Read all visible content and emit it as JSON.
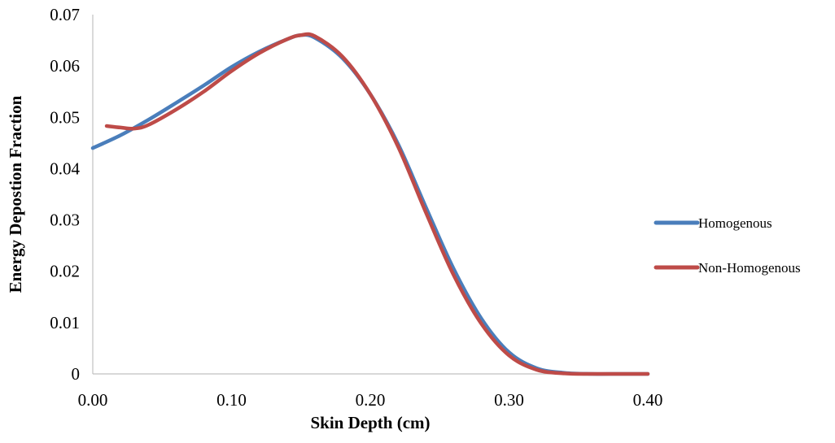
{
  "chart_data": {
    "type": "line",
    "title": "",
    "xlabel": "Skin Depth (cm)",
    "ylabel": "Energy Depostion Fraction",
    "xlim": [
      0,
      0.4
    ],
    "ylim": [
      0,
      0.07
    ],
    "xticks": [
      0.0,
      0.1,
      0.2,
      0.3,
      0.4
    ],
    "xtick_labels": [
      "0.00",
      "0.10",
      "0.20",
      "0.30",
      "0.40"
    ],
    "yticks": [
      0,
      0.01,
      0.02,
      0.03,
      0.04,
      0.05,
      0.06,
      0.07
    ],
    "ytick_labels": [
      "0",
      "0.01",
      "0.02",
      "0.03",
      "0.04",
      "0.05",
      "0.06",
      "0.07"
    ],
    "grid": false,
    "legend_position": "right",
    "series": [
      {
        "name": "Homogenous",
        "color": "#4a7ebb",
        "x": [
          0.0,
          0.02,
          0.04,
          0.06,
          0.08,
          0.1,
          0.12,
          0.14,
          0.15,
          0.16,
          0.18,
          0.2,
          0.22,
          0.24,
          0.26,
          0.28,
          0.3,
          0.32,
          0.34,
          0.36,
          0.38,
          0.4
        ],
        "y": [
          0.044,
          0.0465,
          0.0495,
          0.0528,
          0.0562,
          0.0598,
          0.0628,
          0.0652,
          0.066,
          0.0655,
          0.0615,
          0.0545,
          0.0448,
          0.0325,
          0.0205,
          0.0108,
          0.0042,
          0.0011,
          0.0002,
          0.0,
          0.0,
          0.0
        ]
      },
      {
        "name": "Non-Homogenous",
        "color": "#be4b48",
        "x": [
          0.01,
          0.02,
          0.03,
          0.04,
          0.06,
          0.08,
          0.1,
          0.12,
          0.14,
          0.15,
          0.16,
          0.18,
          0.2,
          0.22,
          0.24,
          0.26,
          0.28,
          0.3,
          0.32,
          0.34,
          0.36,
          0.38,
          0.4
        ],
        "y": [
          0.0483,
          0.048,
          0.0478,
          0.0485,
          0.0515,
          0.055,
          0.059,
          0.0625,
          0.0652,
          0.066,
          0.0658,
          0.0618,
          0.0545,
          0.0443,
          0.0315,
          0.0193,
          0.0098,
          0.0036,
          0.0008,
          0.0001,
          0.0,
          0.0,
          0.0
        ]
      }
    ]
  }
}
